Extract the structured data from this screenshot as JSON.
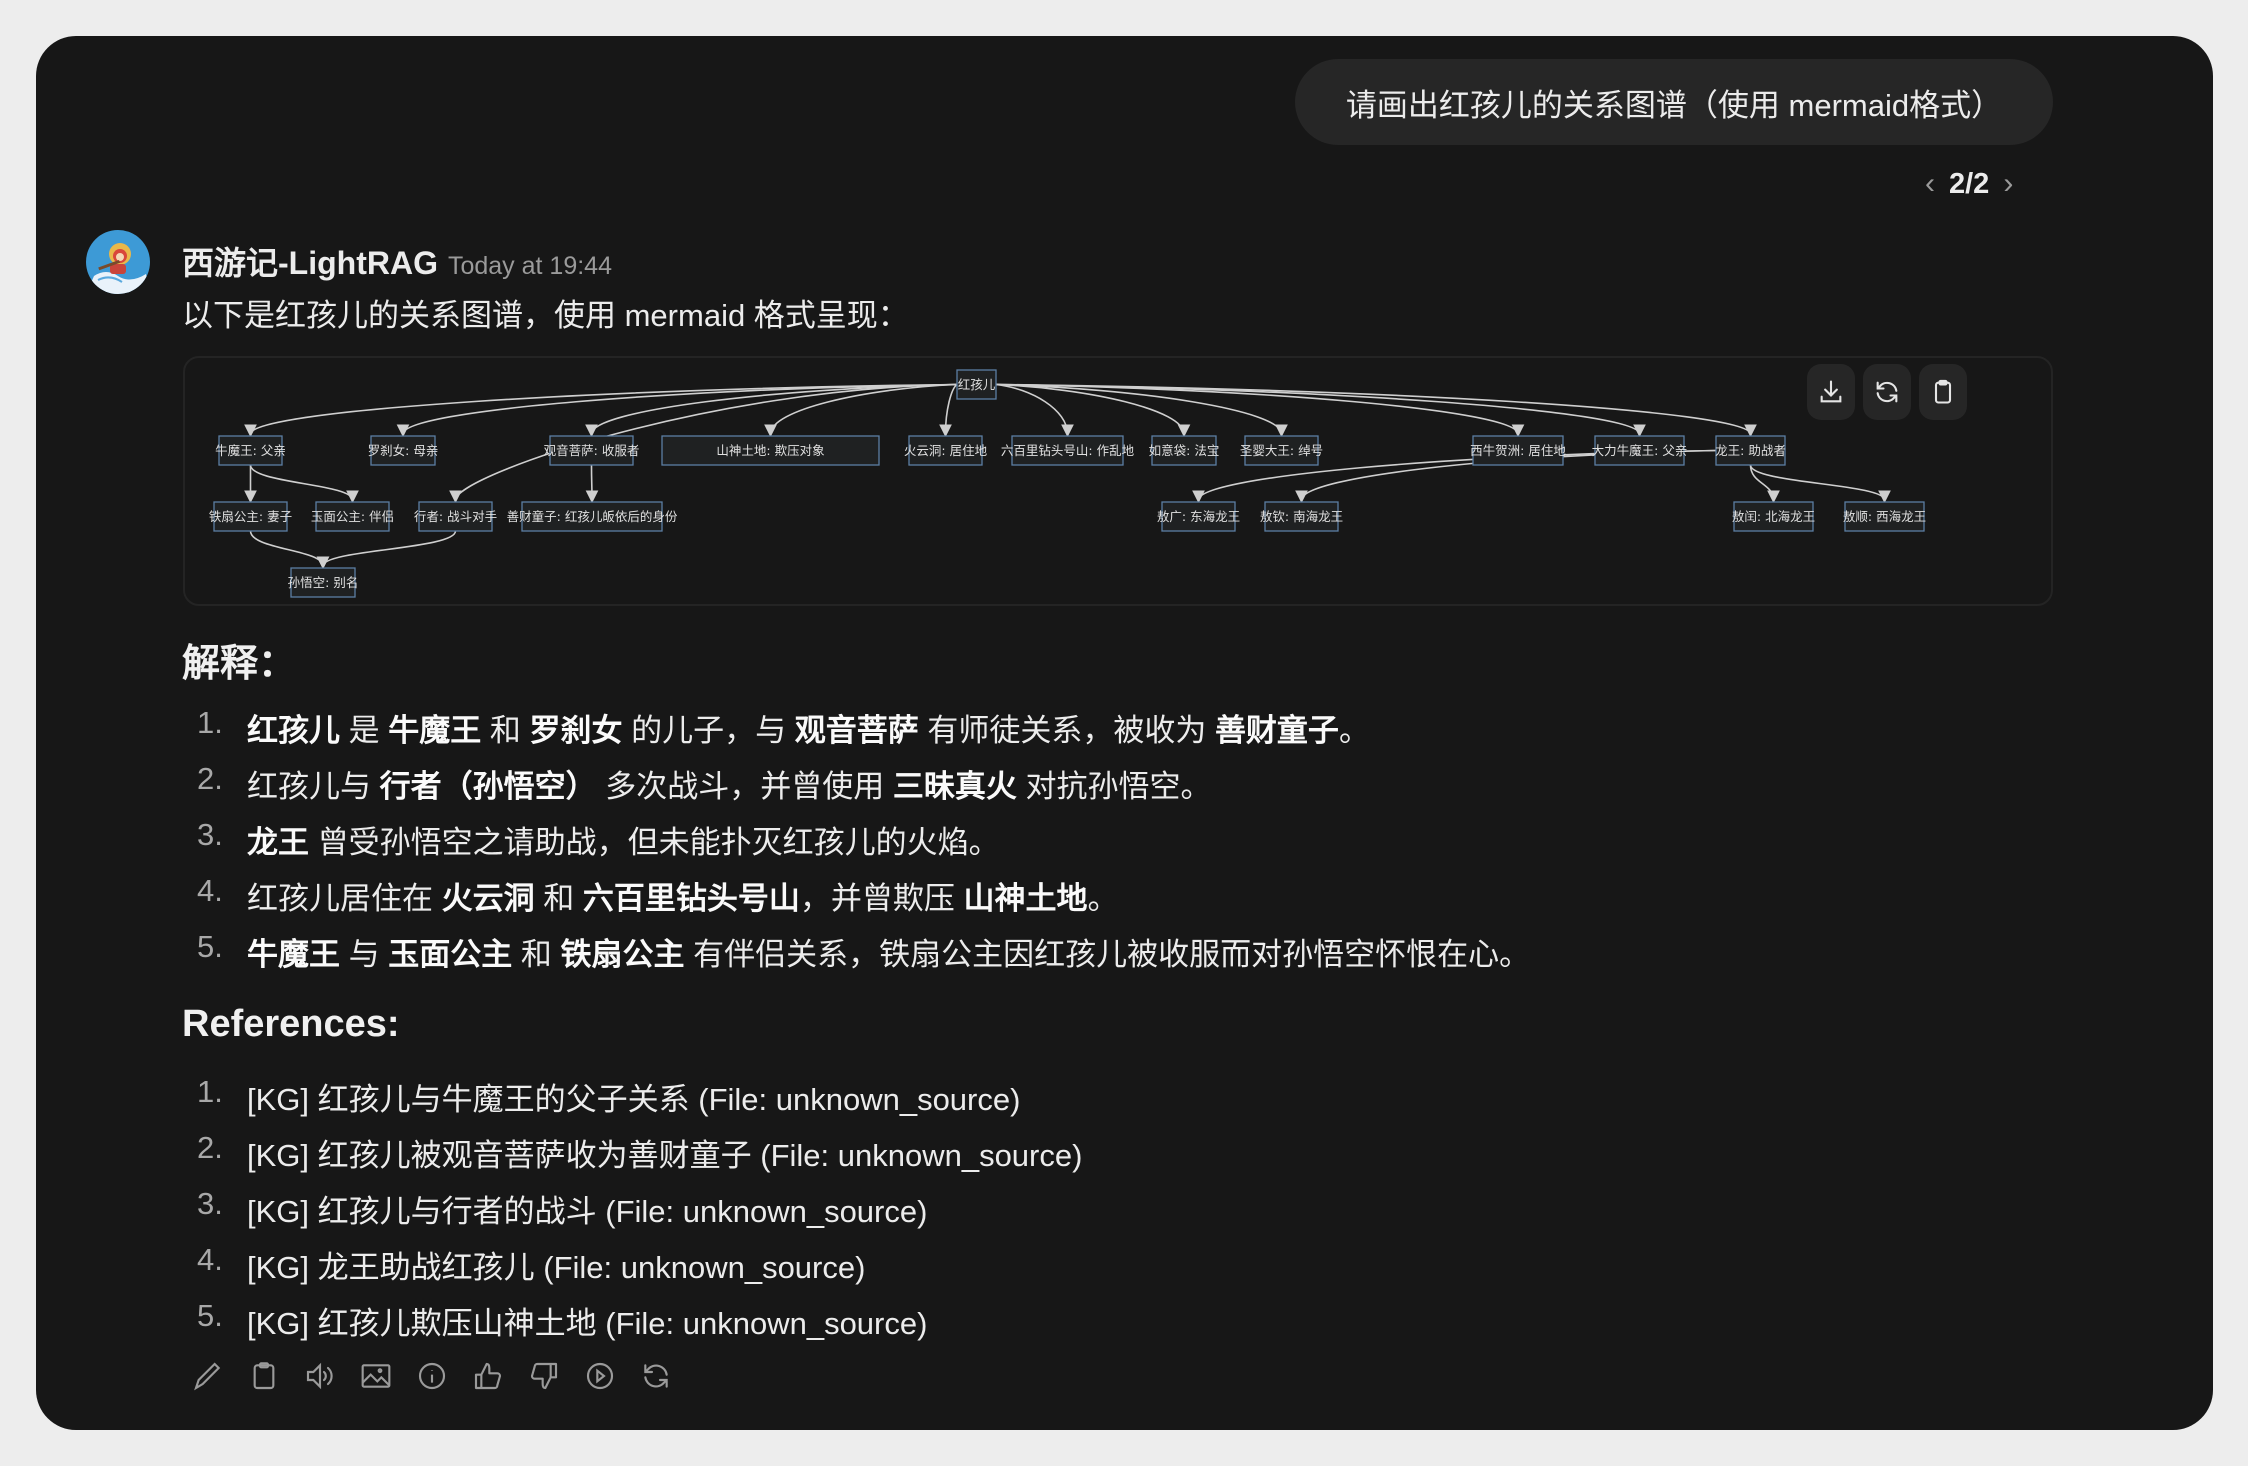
{
  "user_message": "请画出红孩儿的关系图谱（使用 mermaid格式）",
  "pager": {
    "current": "2/2",
    "prev_icon": "chevron-left-icon",
    "next_icon": "chevron-right-icon"
  },
  "assistant": {
    "name": "西游记-LightRAG",
    "timestamp": "Today at 19:44",
    "intro": "以下是红孩儿的关系图谱，使用 mermaid 格式呈现："
  },
  "diagram": {
    "buttons": [
      {
        "icon": "download-icon"
      },
      {
        "icon": "refresh-icon"
      },
      {
        "icon": "clipboard-icon"
      }
    ],
    "nodes": [
      "红孩儿",
      "牛魔王: 父亲",
      "罗刹女: 母亲",
      "观音菩萨: 收服者",
      "山神土地: 欺压对象",
      "火云洞: 居住地",
      "六百里钻头号山: 作乱地",
      "如意袋: 法宝",
      "圣婴大王: 绰号",
      "西牛贺洲: 居住地",
      "大力牛魔王: 父亲",
      "龙王: 助战者",
      "铁扇公主: 妻子",
      "玉面公主: 伴侣",
      "行者: 战斗对手",
      "善财童子: 红孩儿皈依后的身份",
      "敖广: 东海龙王",
      "敖钦: 南海龙王",
      "敖闰: 北海龙王",
      "敖顺: 西海龙王",
      "孙悟空: 别名"
    ],
    "edges": [
      [
        0,
        1
      ],
      [
        0,
        2
      ],
      [
        0,
        3
      ],
      [
        0,
        4
      ],
      [
        0,
        5
      ],
      [
        0,
        6
      ],
      [
        0,
        7
      ],
      [
        0,
        8
      ],
      [
        0,
        9
      ],
      [
        0,
        10
      ],
      [
        0,
        11
      ],
      [
        0,
        14
      ],
      [
        1,
        12
      ],
      [
        1,
        13
      ],
      [
        3,
        15
      ],
      [
        12,
        20
      ],
      [
        14,
        20
      ],
      [
        11,
        16
      ],
      [
        11,
        17
      ],
      [
        11,
        18
      ],
      [
        11,
        19
      ]
    ],
    "colors": {
      "node_fill": "#1f2122",
      "node_border": "#5b7ea3",
      "edge": "#cfcfcf",
      "text": "#e0e0e0"
    }
  },
  "explanation": {
    "heading": "解释：",
    "items": [
      {
        "num": "1.",
        "segments": [
          {
            "t": "红孩儿",
            "b": true
          },
          {
            "t": " 是 "
          },
          {
            "t": "牛魔王",
            "b": true
          },
          {
            "t": " 和 "
          },
          {
            "t": "罗刹女",
            "b": true
          },
          {
            "t": " 的儿子，与 "
          },
          {
            "t": "观音菩萨",
            "b": true
          },
          {
            "t": " 有师徒关系，被收为 "
          },
          {
            "t": "善财童子",
            "b": true
          },
          {
            "t": "。"
          }
        ]
      },
      {
        "num": "2.",
        "segments": [
          {
            "t": "红孩儿与 "
          },
          {
            "t": "行者（孙悟空）",
            "b": true
          },
          {
            "t": " 多次战斗，并曾使用 "
          },
          {
            "t": "三昧真火",
            "b": true
          },
          {
            "t": " 对抗孙悟空。"
          }
        ]
      },
      {
        "num": "3.",
        "segments": [
          {
            "t": "龙王",
            "b": true
          },
          {
            "t": " 曾受孙悟空之请助战，但未能扑灭红孩儿的火焰。"
          }
        ]
      },
      {
        "num": "4.",
        "segments": [
          {
            "t": "红孩儿居住在 "
          },
          {
            "t": "火云洞",
            "b": true
          },
          {
            "t": " 和 "
          },
          {
            "t": "六百里钻头号山",
            "b": true
          },
          {
            "t": "，并曾欺压 "
          },
          {
            "t": "山神土地",
            "b": true
          },
          {
            "t": "。"
          }
        ]
      },
      {
        "num": "5.",
        "segments": [
          {
            "t": "牛魔王",
            "b": true
          },
          {
            "t": " 与 "
          },
          {
            "t": "玉面公主",
            "b": true
          },
          {
            "t": " 和 "
          },
          {
            "t": "铁扇公主",
            "b": true
          },
          {
            "t": " 有伴侣关系，铁扇公主因红孩儿被收服而对孙悟空怀恨在心。"
          }
        ]
      }
    ]
  },
  "references": {
    "heading": "References:",
    "items": [
      {
        "num": "1.",
        "text": "[KG] 红孩儿与牛魔王的父子关系 (File: unknown_source)"
      },
      {
        "num": "2.",
        "text": "[KG] 红孩儿被观音菩萨收为善财童子 (File: unknown_source)"
      },
      {
        "num": "3.",
        "text": "[KG] 红孩儿与行者的战斗 (File: unknown_source)"
      },
      {
        "num": "4.",
        "text": "[KG] 龙王助战红孩儿 (File: unknown_source)"
      },
      {
        "num": "5.",
        "text": "[KG] 红孩儿欺压山神土地 (File: unknown_source)"
      }
    ]
  },
  "toolbar": [
    "edit-icon",
    "copy-icon",
    "read-aloud-icon",
    "image-icon",
    "info-icon",
    "thumbs-up-icon",
    "thumbs-down-icon",
    "play-icon",
    "regenerate-icon"
  ]
}
